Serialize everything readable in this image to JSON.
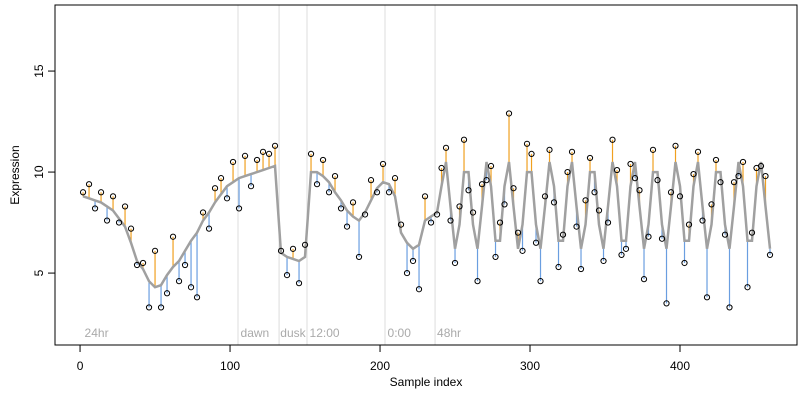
{
  "chart_data": {
    "type": "scatter",
    "xlabel": "Sample index",
    "ylabel": "Expression",
    "xlim": [
      -16.7,
      478
    ],
    "ylim": [
      1.44,
      18.27
    ],
    "xticks": [
      0,
      100,
      200,
      300,
      400
    ],
    "yticks": [
      5,
      10,
      15
    ],
    "colors": {
      "point": "#000000",
      "fit": "#a0a0a0",
      "above": "#f0a020",
      "below": "#6a9ee0",
      "vline": "#dddddd"
    },
    "vlines": [
      105.3,
      132.7,
      151.3,
      203.3,
      236.7
    ],
    "annotations": [
      {
        "text": "24hr",
        "x": 3
      },
      {
        "text": "dawn",
        "x": 107
      },
      {
        "text": "dusk",
        "x": 133.5
      },
      {
        "text": "12:00",
        "x": 153
      },
      {
        "text": "0:00",
        "x": 205
      },
      {
        "text": "48hr",
        "x": 238
      }
    ],
    "x": [
      2,
      6,
      10,
      14,
      18,
      22,
      26,
      30,
      34,
      38,
      42,
      46,
      50,
      54,
      58,
      62,
      66,
      70,
      74,
      78,
      82,
      86,
      90,
      94,
      98,
      102,
      106,
      110,
      114,
      118,
      122,
      126,
      130,
      134,
      138,
      142,
      146,
      150,
      154,
      158,
      162,
      166,
      170,
      174,
      178,
      182,
      186,
      190,
      194,
      198,
      202,
      206,
      210,
      214,
      218,
      222,
      226,
      230,
      234,
      238,
      241,
      244,
      247,
      250,
      253,
      256,
      259,
      262,
      265,
      268,
      271,
      274,
      277,
      280,
      283,
      286,
      289,
      292,
      295,
      298,
      301,
      304,
      307,
      310,
      313,
      316,
      319,
      322,
      325,
      328,
      331,
      334,
      337,
      340,
      343,
      346,
      349,
      352,
      355,
      358,
      361,
      364,
      367,
      370,
      373,
      376,
      379,
      382,
      385,
      388,
      391,
      394,
      397,
      400,
      403,
      406,
      409,
      412,
      415,
      418,
      421,
      424,
      427,
      430,
      433,
      436,
      439,
      442,
      445,
      448,
      451,
      454,
      457,
      460
    ],
    "values": [
      9.0,
      9.4,
      8.2,
      9.0,
      7.6,
      8.8,
      7.5,
      8.3,
      7.2,
      5.4,
      5.5,
      3.3,
      6.1,
      3.3,
      4.0,
      6.8,
      4.6,
      5.4,
      4.3,
      3.8,
      8.0,
      7.2,
      9.2,
      9.7,
      8.7,
      10.5,
      8.2,
      10.8,
      9.3,
      10.6,
      11.0,
      10.9,
      11.3,
      6.1,
      4.9,
      6.2,
      4.5,
      6.4,
      10.9,
      9.4,
      10.6,
      9.0,
      9.8,
      8.2,
      7.3,
      8.5,
      5.8,
      7.9,
      9.6,
      9.0,
      10.4,
      9.0,
      9.7,
      7.4,
      5.0,
      5.6,
      4.2,
      8.8,
      7.5,
      7.9,
      10.2,
      11.2,
      7.6,
      5.5,
      8.3,
      11.6,
      9.1,
      8.0,
      4.6,
      9.4,
      9.6,
      10.3,
      5.8,
      7.5,
      8.4,
      12.9,
      9.2,
      7.0,
      6.1,
      11.4,
      10.9,
      6.5,
      4.6,
      8.8,
      11.1,
      8.5,
      5.3,
      6.9,
      10.0,
      11.0,
      7.3,
      5.2,
      8.6,
      10.7,
      9.0,
      8.1,
      5.6,
      7.5,
      11.6,
      10.1,
      5.9,
      6.2,
      10.4,
      9.7,
      9.1,
      4.7,
      6.8,
      11.1,
      9.6,
      6.7,
      3.5,
      9.0,
      11.3,
      8.8,
      5.5,
      7.4,
      9.9,
      11.0,
      7.6,
      3.8,
      8.4,
      10.6,
      9.5,
      6.9,
      3.3,
      9.5,
      9.8,
      10.5,
      4.3,
      7.0,
      10.2,
      10.3,
      9.8,
      5.9
    ],
    "fitted_values": [
      8.8,
      8.7,
      8.6,
      8.5,
      8.3,
      8.1,
      7.7,
      7.3,
      6.5,
      5.6,
      5.2,
      4.6,
      4.3,
      4.4,
      4.9,
      5.3,
      5.6,
      6.1,
      6.6,
      7.0,
      7.6,
      8.0,
      8.5,
      8.9,
      9.3,
      9.5,
      9.7,
      9.8,
      9.9,
      10.0,
      10.1,
      10.2,
      10.3,
      6.0,
      5.8,
      5.7,
      5.6,
      5.8,
      10.0,
      10.0,
      9.8,
      9.5,
      9.0,
      8.6,
      8.1,
      7.8,
      7.6,
      8.0,
      8.6,
      9.2,
      9.5,
      9.4,
      8.8,
      7.0,
      6.5,
      6.2,
      6.4,
      7.6,
      7.8,
      8.0,
      9.3,
      10.5,
      8.3,
      6.2,
      7.4,
      10.0,
      10.0,
      7.4,
      6.2,
      8.3,
      10.5,
      9.3,
      6.6,
      6.6,
      9.3,
      10.5,
      8.3,
      6.2,
      7.4,
      10.0,
      10.0,
      7.4,
      6.2,
      8.3,
      10.5,
      9.3,
      6.6,
      6.6,
      9.3,
      10.5,
      8.3,
      6.2,
      7.4,
      10.0,
      10.0,
      7.4,
      6.2,
      8.3,
      10.5,
      9.3,
      6.6,
      6.6,
      9.3,
      10.5,
      8.3,
      6.2,
      7.4,
      10.0,
      10.0,
      7.4,
      6.2,
      8.3,
      10.5,
      9.3,
      6.6,
      6.6,
      9.3,
      10.5,
      8.3,
      6.2,
      7.4,
      10.0,
      10.0,
      7.4,
      6.2,
      8.3,
      10.5,
      9.3,
      6.6,
      6.6,
      9.3,
      10.5,
      8.3,
      6.2
    ]
  }
}
